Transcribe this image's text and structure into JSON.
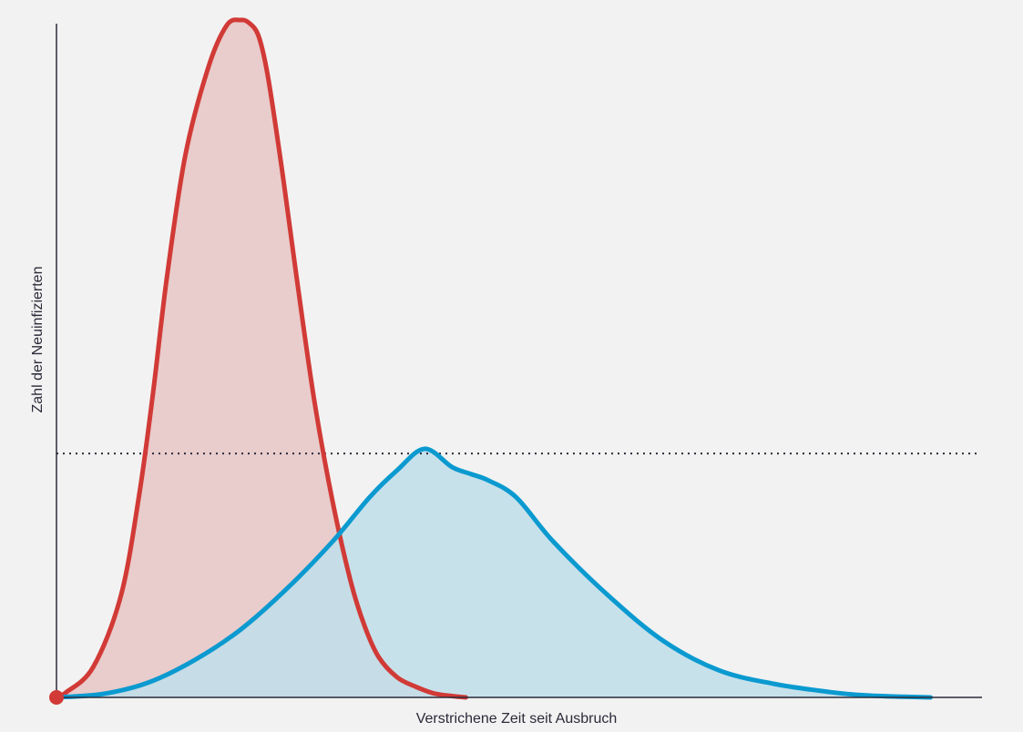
{
  "chart_data": {
    "type": "area",
    "title": "",
    "xlabel": "Verstrichene Zeit seit Ausbruch",
    "ylabel": "Zahl der Neuinfizierten",
    "xlim": [
      0,
      100
    ],
    "ylim": [
      0,
      100
    ],
    "grid": false,
    "legend": "none",
    "reference_line": {
      "value": 36,
      "style": "dotted",
      "color": "#2b2b3a"
    },
    "series": [
      {
        "color": "#d13a36",
        "fill": "#e8c6c6",
        "x": [
          0,
          1,
          4,
          7,
          9,
          10.5,
          12,
          14,
          16.5,
          18.5,
          20,
          21,
          22,
          23,
          24.5,
          26,
          28,
          30,
          32,
          33.5,
          35,
          37,
          39,
          41,
          43,
          44.5
        ],
        "y": [
          0,
          0.7,
          4.5,
          15,
          30,
          45,
          62,
          80,
          93,
          99.2,
          100,
          99.5,
          97.5,
          91.5,
          78,
          63,
          44,
          29,
          17,
          10.5,
          6,
          3,
          1.6,
          0.6,
          0.2,
          0
        ]
      },
      {
        "color": "#0b9ad0",
        "fill": "#bfdeea",
        "x": [
          0,
          5,
          10,
          15,
          20,
          25,
          30,
          34,
          37,
          40,
          43,
          45,
          47,
          50,
          54,
          60,
          66,
          72,
          78,
          84,
          88,
          92,
          95
        ],
        "y": [
          0,
          0.5,
          2.2,
          5.5,
          10,
          16,
          23,
          29.5,
          33.5,
          36.7,
          34,
          33,
          32,
          29.5,
          23,
          15,
          8.3,
          4,
          2,
          0.8,
          0.3,
          0.1,
          0
        ]
      }
    ]
  }
}
